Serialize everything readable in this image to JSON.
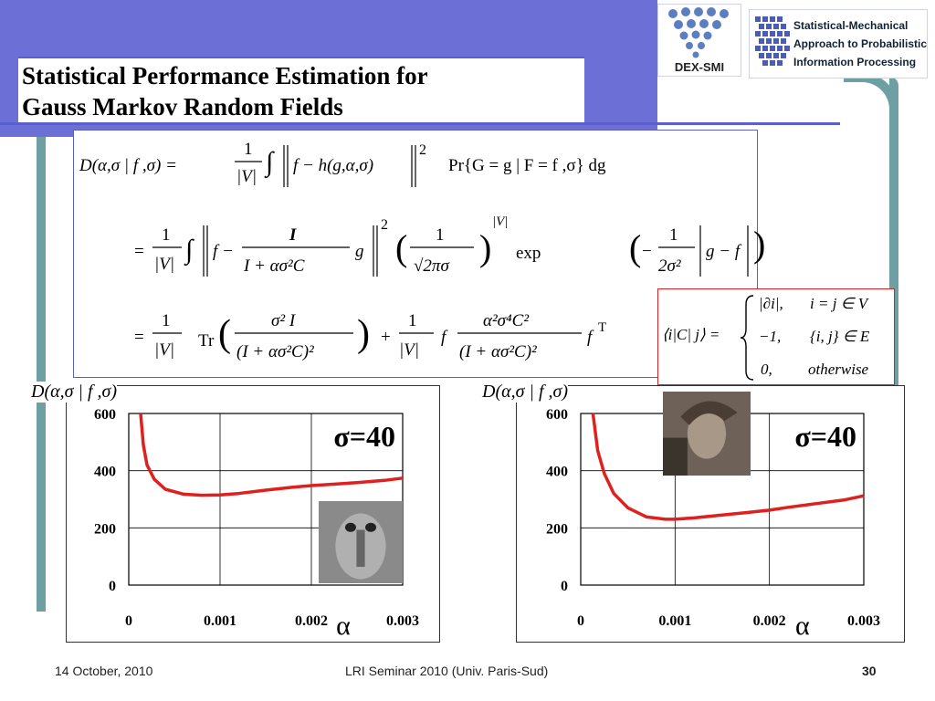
{
  "slide": {
    "title_line1": "Statistical Performance Estimation for",
    "title_line2": "Gauss Markov Random Fields"
  },
  "logos": {
    "dex": "DEX-SMI",
    "smapip_lines": [
      "Statistical-Mechanical",
      "Approach to Probabilistic",
      "Information Processing"
    ]
  },
  "formulas": {
    "line1_lhs": "D(α,σ | f ,σ) =",
    "line1_rhs": "Pr{G = g | F = f ,σ} dg",
    "line2": "exp",
    "line3": "Tr",
    "matrix_lhs": "⟨i|C| j⟩ =",
    "matrix_cases": [
      [
        "|∂i|,",
        "i = j ∈ V"
      ],
      [
        "−1,",
        "{i, j} ∈ E"
      ],
      [
        "0,",
        "otherwise"
      ]
    ]
  },
  "chart_data": [
    {
      "type": "line",
      "title": "D(α,σ | f ,σ)",
      "annotation": "σ=40",
      "xlabel": "α",
      "x_ticks": [
        "0",
        "0.001",
        "0.002",
        "0.003"
      ],
      "y_ticks": [
        "0",
        "200",
        "400",
        "600"
      ],
      "xlim": [
        0,
        0.003
      ],
      "ylim": [
        0,
        600
      ],
      "grid": true,
      "color": "#e0201f",
      "series": [
        {
          "x": [
            0.00013,
            0.00016,
            0.0002,
            0.00028,
            0.0004,
            0.0006,
            0.0008,
            0.001,
            0.0012,
            0.0015,
            0.0018,
            0.002,
            0.0022,
            0.0025,
            0.0028,
            0.003
          ],
          "y": [
            600,
            490,
            420,
            370,
            335,
            318,
            314,
            315,
            320,
            332,
            342,
            348,
            352,
            358,
            366,
            374
          ]
        }
      ]
    },
    {
      "type": "line",
      "title": "D(α,σ | f ,σ)",
      "annotation": "σ=40",
      "xlabel": "α",
      "x_ticks": [
        "0",
        "0.001",
        "0.002",
        "0.003"
      ],
      "y_ticks": [
        "0",
        "200",
        "400",
        "600"
      ],
      "xlim": [
        0,
        0.003
      ],
      "ylim": [
        0,
        600
      ],
      "grid": true,
      "color": "#e0201f",
      "series": [
        {
          "x": [
            0.00013,
            0.00018,
            0.00025,
            0.00035,
            0.0005,
            0.0007,
            0.0009,
            0.001,
            0.0012,
            0.0015,
            0.0018,
            0.002,
            0.0022,
            0.0025,
            0.0028,
            0.003
          ],
          "y": [
            600,
            470,
            390,
            320,
            270,
            238,
            230,
            230,
            235,
            245,
            255,
            262,
            272,
            285,
            298,
            312
          ]
        }
      ]
    }
  ],
  "footer": {
    "date": "14 October, 2010",
    "event": "LRI Seminar 2010 (Univ. Paris-Sud)",
    "page": "30"
  }
}
